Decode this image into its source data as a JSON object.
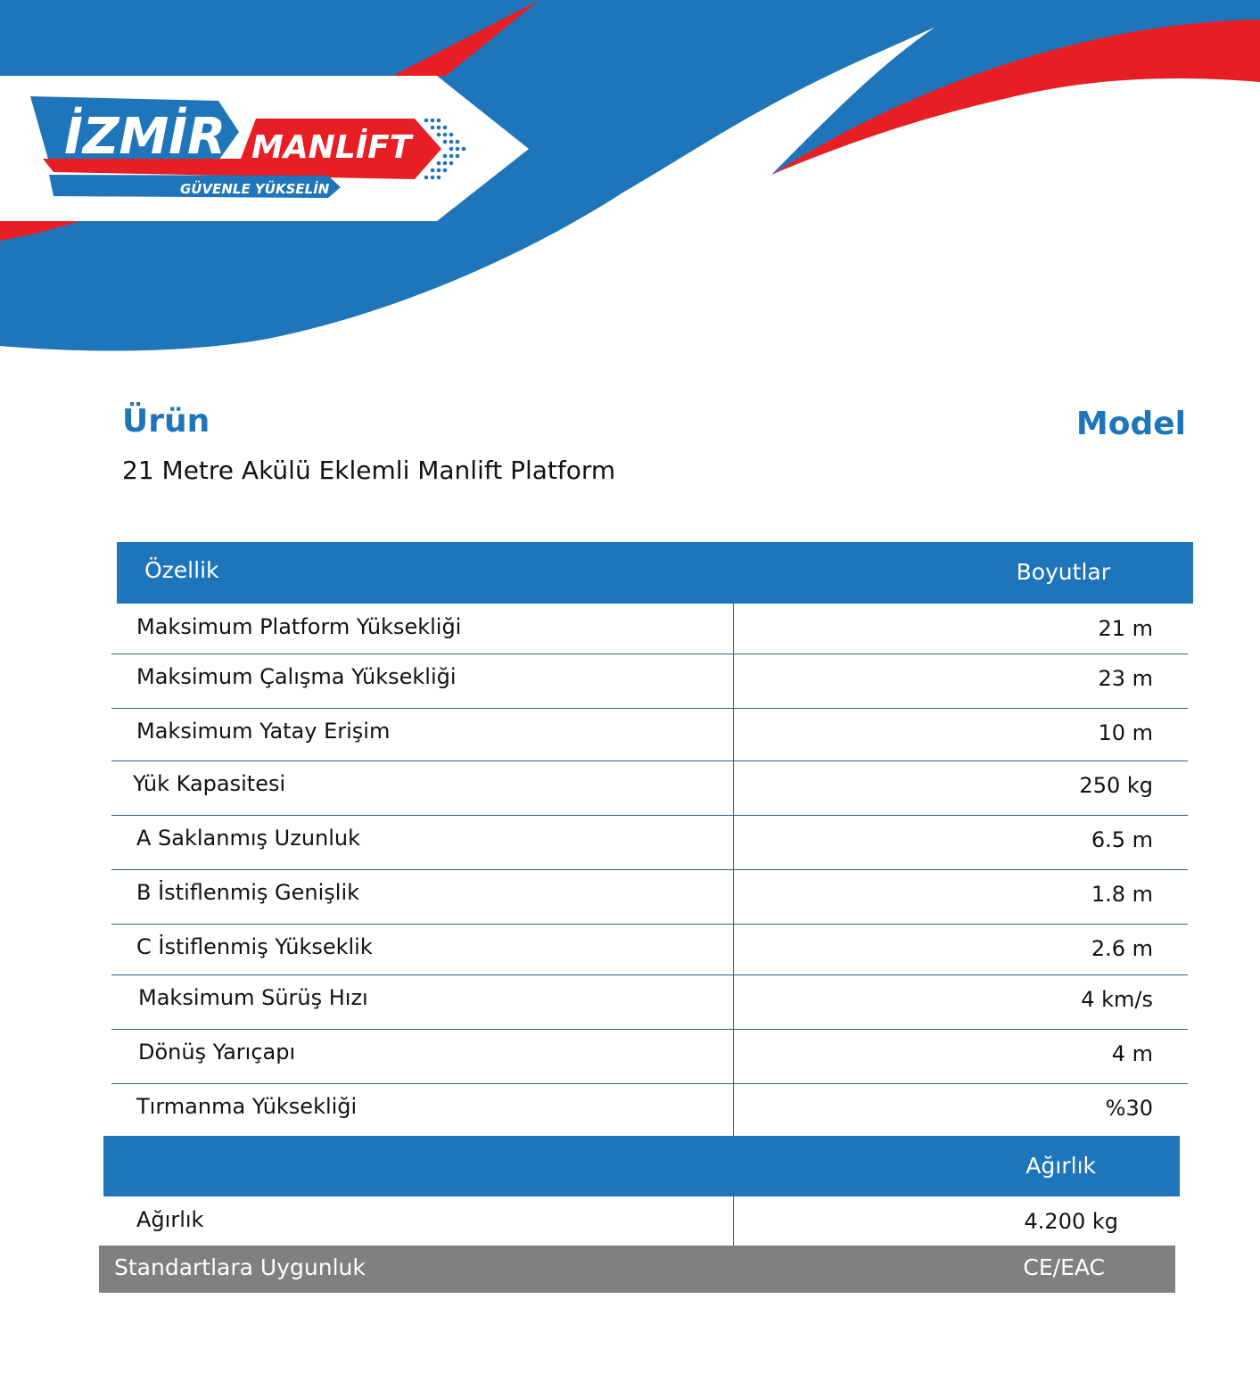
{
  "brand": {
    "logo_word1": "İZMİR",
    "logo_word2": "MANLİFT",
    "tagline": "GÜVENLE YÜKSELİN",
    "colors": {
      "blue": "#1f75b9",
      "red": "#e81e25",
      "gray": "#808080"
    }
  },
  "product": {
    "urun_label": "Ürün",
    "name": "21 Metre Akülü Eklemli Manlift Platform",
    "model_label": "Model"
  },
  "specs": {
    "header_feature": "Özellik",
    "header_value": "Boyutlar",
    "rows": [
      {
        "label": "Maksimum Platform Yüksekliği",
        "value": "21 m"
      },
      {
        "label": "Maksimum Çalışma Yüksekliği",
        "value": "23 m"
      },
      {
        "label": "Maksimum Yatay Erişim",
        "value": "10 m"
      },
      {
        "label": "Yük Kapasitesi",
        "value": "250 kg"
      },
      {
        "label": "A Saklanmış Uzunluk",
        "value": "6.5 m"
      },
      {
        "label": "B İstiflenmiş Genişlik",
        "value": "1.8 m"
      },
      {
        "label": "C İstiflenmiş Yükseklik",
        "value": "2.6 m"
      },
      {
        "label": "Maksimum Sürüş Hızı",
        "value": "4 km/s"
      },
      {
        "label": "Dönüş Yarıçapı",
        "value": "4 m"
      },
      {
        "label": "Tırmanma Yüksekliği",
        "value": "%30"
      }
    ]
  },
  "weight": {
    "header": "Ağırlık",
    "label": "Ağırlık",
    "value": "4.200 kg"
  },
  "standards": {
    "label": "Standartlara Uygunluk",
    "value": "CE/EAC"
  }
}
